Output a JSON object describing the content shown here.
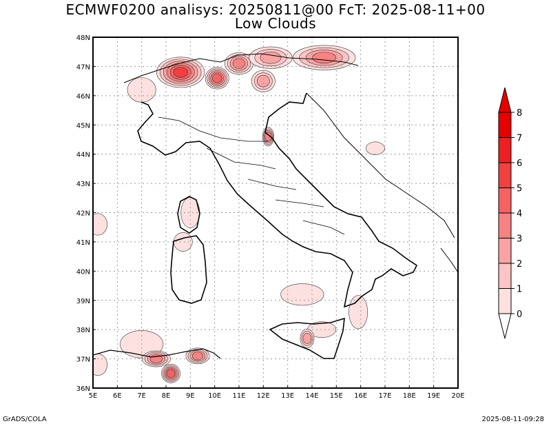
{
  "title": {
    "line1": "ECMWF0200 analisys: 20250811@00 FcT: 2025-08-11+00",
    "line2": "Low Clouds"
  },
  "footer": {
    "credit": "GrADS/COLA",
    "timestamp": "2025-08-11-09:28"
  },
  "map": {
    "lon_range": [
      5,
      20
    ],
    "lat_range": [
      36,
      48
    ],
    "lon_ticks": [
      "5E",
      "6E",
      "7E",
      "8E",
      "9E",
      "10E",
      "11E",
      "12E",
      "13E",
      "14E",
      "15E",
      "16E",
      "17E",
      "18E",
      "19E",
      "20E"
    ],
    "lat_ticks": [
      "36N",
      "37N",
      "38N",
      "39N",
      "40N",
      "41N",
      "42N",
      "43N",
      "44N",
      "45N",
      "46N",
      "47N",
      "48N"
    ],
    "grid": "dotted"
  },
  "colorbar": {
    "levels": [
      "0",
      "1",
      "2",
      "3",
      "4",
      "5",
      "6",
      "7",
      "8"
    ],
    "colors": [
      "#fde0e0",
      "#fcc4c4",
      "#f9a3a3",
      "#f78282",
      "#f46262",
      "#f04040",
      "#ec2020",
      "#e60000"
    ]
  },
  "fields": [
    {
      "name": "alps-west",
      "lon": 7.0,
      "lat": 46.2,
      "rx": 0.5,
      "ry": 0.35,
      "level": 1
    },
    {
      "name": "alps-ch",
      "lon": 8.6,
      "lat": 46.8,
      "rx": 0.9,
      "ry": 0.45,
      "level": 6
    },
    {
      "name": "alps-lake",
      "lon": 10.1,
      "lat": 46.6,
      "rx": 0.4,
      "ry": 0.3,
      "level": 5
    },
    {
      "name": "alps-tirol",
      "lon": 11.0,
      "lat": 47.1,
      "rx": 0.5,
      "ry": 0.3,
      "level": 4
    },
    {
      "name": "alps-east",
      "lon": 12.3,
      "lat": 47.3,
      "rx": 0.8,
      "ry": 0.3,
      "level": 3
    },
    {
      "name": "alps-austria",
      "lon": 14.5,
      "lat": 47.3,
      "rx": 1.2,
      "ry": 0.35,
      "level": 4
    },
    {
      "name": "alps-dolomites",
      "lon": 12.0,
      "lat": 46.5,
      "rx": 0.4,
      "ry": 0.3,
      "level": 3
    },
    {
      "name": "rimini",
      "lon": 12.2,
      "lat": 44.6,
      "rx": 0.15,
      "ry": 0.25,
      "level": 4
    },
    {
      "name": "croatia",
      "lon": 16.6,
      "lat": 44.2,
      "rx": 0.3,
      "ry": 0.15,
      "level": 1
    },
    {
      "name": "corsica",
      "lon": 9.0,
      "lat": 42.0,
      "rx": 0.3,
      "ry": 0.45,
      "level": 1
    },
    {
      "name": "sardinia-n",
      "lon": 8.7,
      "lat": 41.0,
      "rx": 0.3,
      "ry": 0.25,
      "level": 1
    },
    {
      "name": "balearic",
      "lon": 5.2,
      "lat": 41.6,
      "rx": 0.3,
      "ry": 0.3,
      "level": 1
    },
    {
      "name": "ionian",
      "lon": 13.6,
      "lat": 39.2,
      "rx": 0.8,
      "ry": 0.3,
      "level": 1
    },
    {
      "name": "calabria",
      "lon": 15.9,
      "lat": 38.6,
      "rx": 0.3,
      "ry": 0.5,
      "level": 1
    },
    {
      "name": "sicily-n",
      "lon": 14.4,
      "lat": 38.0,
      "rx": 0.5,
      "ry": 0.2,
      "level": 1
    },
    {
      "name": "sicily-s",
      "lon": 13.8,
      "lat": 37.7,
      "rx": 0.2,
      "ry": 0.25,
      "level": 3
    },
    {
      "name": "algeria-w",
      "lon": 7.0,
      "lat": 37.5,
      "rx": 0.8,
      "ry": 0.4,
      "level": 1
    },
    {
      "name": "tunisia-1",
      "lon": 7.6,
      "lat": 37.0,
      "rx": 0.5,
      "ry": 0.2,
      "level": 4
    },
    {
      "name": "tunisia-2",
      "lon": 8.2,
      "lat": 36.5,
      "rx": 0.3,
      "ry": 0.25,
      "level": 5
    },
    {
      "name": "tunisia-3",
      "lon": 9.3,
      "lat": 37.1,
      "rx": 0.4,
      "ry": 0.2,
      "level": 4
    },
    {
      "name": "algeria-far",
      "lon": 5.2,
      "lat": 36.8,
      "rx": 0.3,
      "ry": 0.3,
      "level": 1
    }
  ]
}
